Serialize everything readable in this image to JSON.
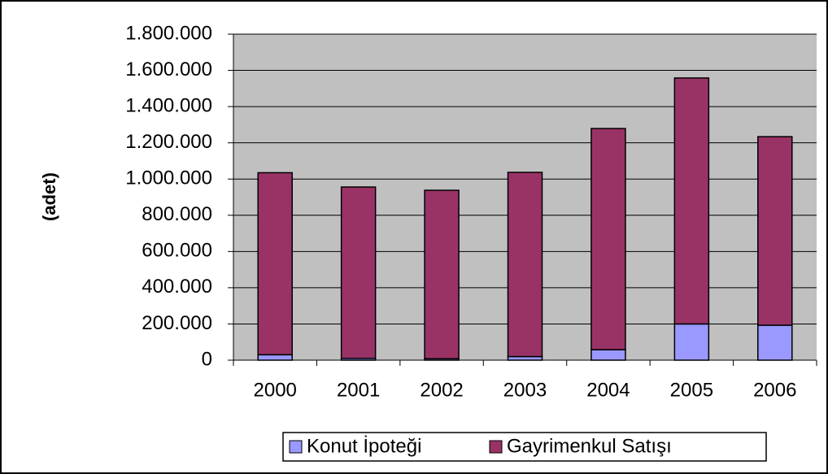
{
  "chart_data": {
    "type": "stacked_bar",
    "ylabel": "(adet)",
    "categories": [
      "2000",
      "2001",
      "2002",
      "2003",
      "2004",
      "2005",
      "2006"
    ],
    "series": [
      {
        "name": "Konut İpoteği",
        "color": "#9999ff",
        "values": [
          30000,
          10000,
          8000,
          20000,
          58000,
          200000,
          193000
        ]
      },
      {
        "name": "Gayrimenkul Satışı",
        "color": "#993366",
        "values": [
          1005000,
          946000,
          930000,
          1017000,
          1221000,
          1358000,
          1041000
        ]
      }
    ],
    "ylim": [
      0,
      1800000
    ],
    "yticks": [
      0,
      {
        "value": 200000,
        "label": "200.000"
      },
      {
        "value": 400000,
        "label": "400.000"
      },
      {
        "value": 600000,
        "label": "600.000"
      },
      {
        "value": 800000,
        "label": "800.000"
      },
      {
        "value": 1000000,
        "label": "1.000.000"
      },
      {
        "value": 1200000,
        "label": "1.200.000"
      },
      {
        "value": 1400000,
        "label": "1.400.000"
      },
      {
        "value": 1600000,
        "label": "1.600.000"
      },
      {
        "value": 1800000,
        "label": "1.800.000"
      }
    ],
    "grid": true,
    "plot_background": "#c0c0c0",
    "legend": "bottom"
  }
}
